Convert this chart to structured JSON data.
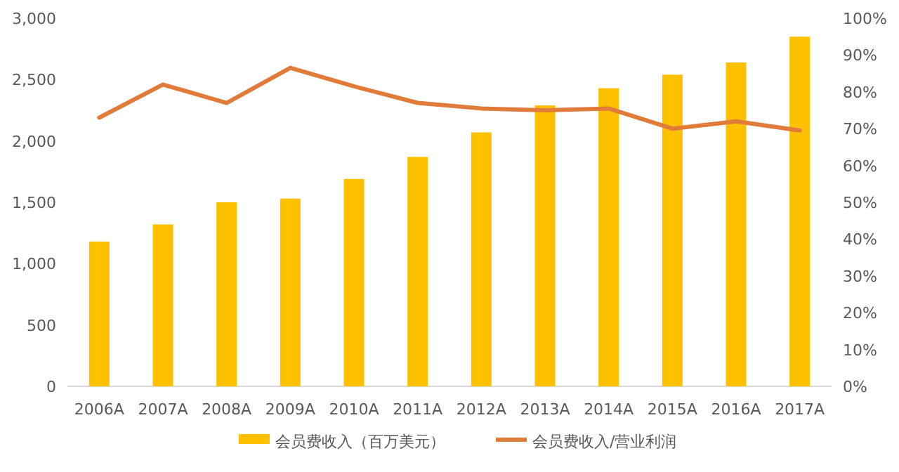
{
  "chart_data": {
    "type": "bar",
    "categories": [
      "2006A",
      "2007A",
      "2008A",
      "2009A",
      "2010A",
      "2011A",
      "2012A",
      "2013A",
      "2014A",
      "2015A",
      "2016A",
      "2017A"
    ],
    "series": [
      {
        "name": "会员费收入（百万美元）",
        "color": "#ffc000",
        "values": [
          1180,
          1320,
          1500,
          1530,
          1690,
          1870,
          2070,
          2290,
          2430,
          2540,
          2640,
          2850
        ]
      },
      {
        "name": "会员费收入/营业利润",
        "type": "line",
        "axis": "y2",
        "color": "#e07b39",
        "values": [
          73,
          82,
          77,
          86.5,
          81.5,
          77,
          75.5,
          75,
          75.5,
          70,
          72,
          69.5
        ]
      }
    ],
    "ylim": [
      0,
      3000
    ],
    "yticks": [
      0,
      500,
      {
        "value": 1000,
        "label": "1,000"
      },
      {
        "value": 1500,
        "label": "1,500"
      },
      {
        "value": 2000,
        "label": "2,000"
      },
      {
        "value": 2500,
        "label": "2,500"
      },
      {
        "value": 3000,
        "label": "3,000"
      }
    ],
    "y2lim": [
      0,
      100
    ],
    "y2ticks": [
      {
        "value": 0,
        "label": "0%"
      },
      {
        "value": 10,
        "label": "10%"
      },
      {
        "value": 20,
        "label": "20%"
      },
      {
        "value": 30,
        "label": "30%"
      },
      {
        "value": 40,
        "label": "40%"
      },
      {
        "value": 50,
        "label": "50%"
      },
      {
        "value": 60,
        "label": "60%"
      },
      {
        "value": 70,
        "label": "70%"
      },
      {
        "value": 80,
        "label": "80%"
      },
      {
        "value": 90,
        "label": "90%"
      },
      {
        "value": 100,
        "label": "100%"
      }
    ],
    "legend": "bottom",
    "grid": false,
    "marker": "none"
  }
}
